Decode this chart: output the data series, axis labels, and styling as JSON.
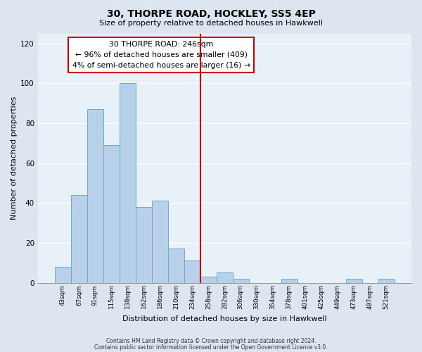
{
  "title": "30, THORPE ROAD, HOCKLEY, SS5 4EP",
  "subtitle": "Size of property relative to detached houses in Hawkwell",
  "xlabel": "Distribution of detached houses by size in Hawkwell",
  "ylabel": "Number of detached properties",
  "bar_labels": [
    "43sqm",
    "67sqm",
    "91sqm",
    "115sqm",
    "138sqm",
    "162sqm",
    "186sqm",
    "210sqm",
    "234sqm",
    "258sqm",
    "282sqm",
    "306sqm",
    "330sqm",
    "354sqm",
    "378sqm",
    "401sqm",
    "425sqm",
    "449sqm",
    "473sqm",
    "497sqm",
    "521sqm"
  ],
  "bar_values": [
    8,
    44,
    87,
    69,
    100,
    38,
    41,
    17,
    11,
    3,
    5,
    2,
    0,
    0,
    2,
    0,
    0,
    0,
    2,
    0,
    2
  ],
  "bar_color": "#b8d0e8",
  "bar_edge_color": "#6aaad4",
  "ylim": [
    0,
    125
  ],
  "yticks": [
    0,
    20,
    40,
    60,
    80,
    100,
    120
  ],
  "vline_color": "#cc0000",
  "annotation_title": "30 THORPE ROAD: 246sqm",
  "annotation_line1": "← 96% of detached houses are smaller (409)",
  "annotation_line2": "4% of semi-detached houses are larger (16) →",
  "annotation_box_edge_color": "#cc0000",
  "footnote1": "Contains HM Land Registry data © Crown copyright and database right 2024.",
  "footnote2": "Contains public sector information licensed under the Open Government Licence v3.0.",
  "fig_bg_color": "#dde6f0",
  "plot_bg_color": "#e8f0f8"
}
